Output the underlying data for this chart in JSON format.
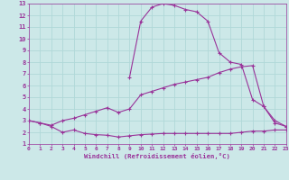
{
  "xlabel": "Windchill (Refroidissement éolien,°C)",
  "bg_color": "#cce8e8",
  "line_color": "#993399",
  "grid_color": "#b0d8d8",
  "xmin": 0,
  "xmax": 23,
  "ymin": 1,
  "ymax": 13,
  "line1_x": [
    0,
    1,
    2,
    3,
    4,
    5,
    6,
    7,
    8,
    9,
    10,
    11,
    12,
    13,
    14,
    15,
    16,
    17,
    18,
    19,
    20,
    21,
    22,
    23
  ],
  "line1_y": [
    3.0,
    2.8,
    2.5,
    2.0,
    2.2,
    1.9,
    1.8,
    1.75,
    1.6,
    1.7,
    1.8,
    1.85,
    1.9,
    1.9,
    1.9,
    1.9,
    1.9,
    1.9,
    1.9,
    2.0,
    2.1,
    2.1,
    2.2,
    2.2
  ],
  "line2_x": [
    0,
    1,
    2,
    3,
    4,
    5,
    6,
    7,
    8,
    9,
    10,
    11,
    12,
    13,
    14,
    15,
    16,
    17,
    18,
    19,
    20,
    21,
    22,
    23
  ],
  "line2_y": [
    3.0,
    2.8,
    2.6,
    3.0,
    3.2,
    3.5,
    3.8,
    4.1,
    3.7,
    4.0,
    5.2,
    5.5,
    5.8,
    6.1,
    6.3,
    6.5,
    6.7,
    7.1,
    7.4,
    7.6,
    7.7,
    4.2,
    3.0,
    2.5
  ],
  "line3_x": [
    0,
    1,
    2,
    3,
    4,
    5,
    6,
    7,
    8,
    9,
    10,
    11,
    12,
    13,
    14,
    15,
    16,
    17,
    18,
    19,
    20,
    21,
    22,
    23
  ],
  "line3_y": [
    3.0,
    null,
    null,
    null,
    null,
    null,
    null,
    null,
    null,
    6.7,
    11.5,
    12.7,
    13.0,
    12.85,
    12.5,
    12.3,
    11.5,
    8.8,
    8.0,
    7.8,
    4.8,
    4.2,
    2.8,
    2.5
  ],
  "xticks": [
    0,
    1,
    2,
    3,
    4,
    5,
    6,
    7,
    8,
    9,
    10,
    11,
    12,
    13,
    14,
    15,
    16,
    17,
    18,
    19,
    20,
    21,
    22,
    23
  ],
  "yticks": [
    1,
    2,
    3,
    4,
    5,
    6,
    7,
    8,
    9,
    10,
    11,
    12,
    13
  ]
}
